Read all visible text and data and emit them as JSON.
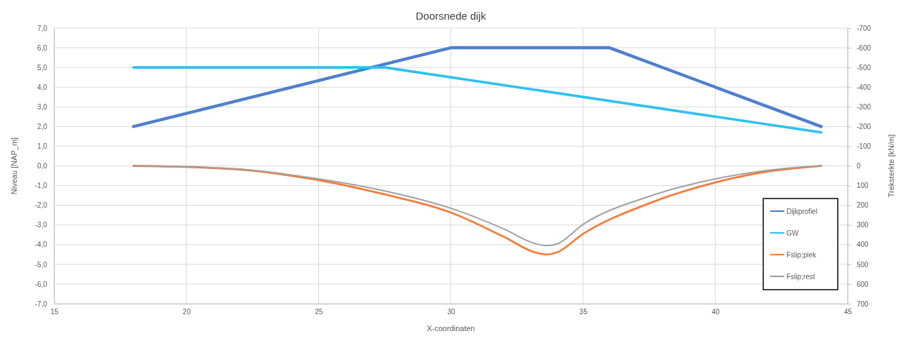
{
  "chart_data": {
    "type": "line",
    "title": "Doorsnede dijk",
    "xlabel": "X-coordinaten",
    "ylabel": "Niveau [NAP_m]",
    "y2label": "Treksterkte [kN/m]",
    "xlim": [
      15,
      45
    ],
    "xticks": [
      15,
      20,
      25,
      30,
      35,
      40,
      45
    ],
    "ylim": [
      -7,
      7
    ],
    "yticks": [
      {
        "value": -7,
        "label": "-7,0"
      },
      {
        "value": -6,
        "label": "-6,0"
      },
      {
        "value": -5,
        "label": "-5,0"
      },
      {
        "value": -4,
        "label": "-4,0"
      },
      {
        "value": -3,
        "label": "-3,0"
      },
      {
        "value": -2,
        "label": "-2,0"
      },
      {
        "value": -1,
        "label": "-1,0"
      },
      {
        "value": 0,
        "label": "0,0"
      },
      {
        "value": 1,
        "label": "1,0"
      },
      {
        "value": 2,
        "label": "2,0"
      },
      {
        "value": 3,
        "label": "3,0"
      },
      {
        "value": 4,
        "label": "4,0"
      },
      {
        "value": 5,
        "label": "5,0"
      },
      {
        "value": 6,
        "label": "6,0"
      },
      {
        "value": 7,
        "label": "7,0"
      }
    ],
    "y2lim": [
      700,
      -700
    ],
    "y2ticks": [
      -700,
      -600,
      -500,
      -400,
      -300,
      -200,
      -100,
      0,
      100,
      200,
      300,
      400,
      500,
      600,
      700
    ],
    "grid": true,
    "legend": "bottom right",
    "marker": "none",
    "line_style": "solid",
    "series": [
      {
        "name": "Dijkprofiel",
        "color": "#4f7fcf",
        "x": [
          18,
          30,
          36,
          44
        ],
        "values": [
          2,
          6,
          6,
          2
        ]
      },
      {
        "name": "GW",
        "color": "#2fc0f0",
        "x": [
          18,
          27.5,
          44
        ],
        "values": [
          5,
          5,
          1.7
        ]
      },
      {
        "name": "Fslip;piek",
        "color": "#f47d3a",
        "axis": "y2",
        "x": [
          18,
          20,
          22.5,
          25,
          27.5,
          30,
          32,
          33.2,
          33.6,
          34,
          35,
          37.5,
          40,
          42,
          44
        ],
        "values": [
          0,
          5,
          24,
          73,
          145,
          237,
          360,
          440,
          450,
          440,
          345,
          190,
          84,
          28,
          0
        ]
      },
      {
        "name": "Fslip;rest",
        "color": "#a0a0a0",
        "axis": "y2",
        "x": [
          18,
          20,
          22.5,
          25,
          27.5,
          30,
          32,
          33.2,
          33.6,
          34,
          35,
          37.5,
          40,
          42,
          44
        ],
        "values": [
          0,
          5,
          22,
          66,
          127,
          215,
          320,
          395,
          405,
          397,
          297,
          155,
          66,
          22,
          0
        ]
      }
    ]
  }
}
